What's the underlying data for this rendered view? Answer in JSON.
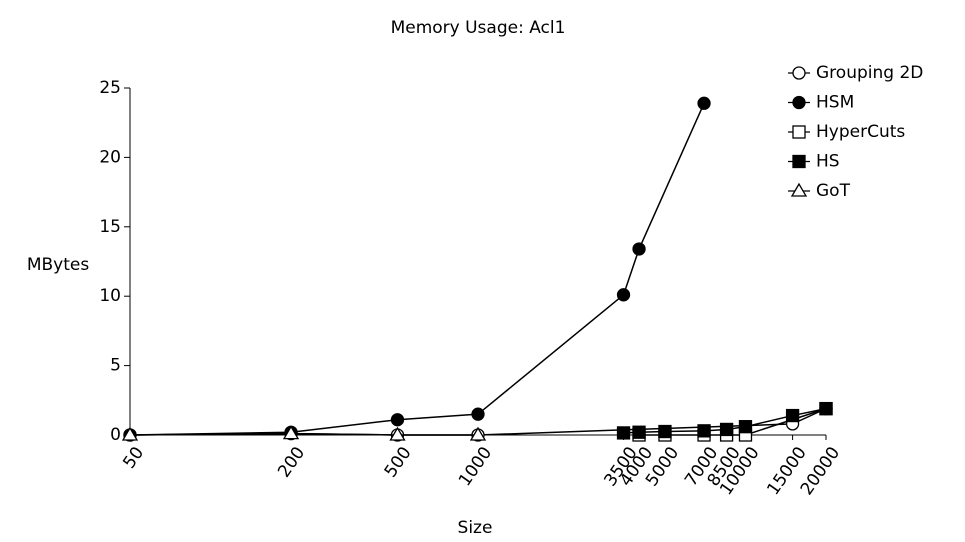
{
  "chart_data": {
    "type": "line",
    "title": "Memory Usage: Acl1",
    "xlabel": "Size",
    "ylabel": "MBytes",
    "xscale": "log",
    "xlim": [
      50,
      20000
    ],
    "xticks": [
      50,
      200,
      500,
      1000,
      3500,
      4000,
      5000,
      7000,
      8500,
      10000,
      15000,
      20000
    ],
    "ylim": [
      0,
      25
    ],
    "yticks": [
      0,
      5,
      10,
      15,
      20,
      25
    ],
    "legend": "upper right",
    "series": [
      {
        "name": "Grouping 2D",
        "color": "#000000",
        "marker": "circle-open",
        "x": [
          50,
          200,
          500,
          1000,
          15000,
          20000
        ],
        "values": [
          0,
          0.1,
          0,
          0,
          0.8,
          1.9
        ]
      },
      {
        "name": "HSM",
        "color": "#000000",
        "marker": "circle-filled",
        "x": [
          50,
          200,
          500,
          1000,
          3500,
          4000,
          7000
        ],
        "values": [
          0,
          0.2,
          1.1,
          1.5,
          10.1,
          13.4,
          23.9
        ]
      },
      {
        "name": "HyperCuts",
        "color": "#000000",
        "marker": "square-open",
        "x": [
          4000,
          5000,
          7000,
          8500,
          10000,
          20000
        ],
        "values": [
          0,
          0,
          0,
          0,
          0,
          1.9
        ]
      },
      {
        "name": "HS",
        "color": "#000000",
        "marker": "square-filled",
        "x": [
          3500,
          4000,
          5000,
          7000,
          8500,
          10000,
          15000,
          20000
        ],
        "values": [
          0.15,
          0.2,
          0.25,
          0.3,
          0.4,
          0.6,
          1.4,
          1.9
        ]
      },
      {
        "name": "GoT",
        "color": "#000000",
        "marker": "triangle-open",
        "x": [
          50,
          200,
          500,
          1000
        ],
        "values": [
          0,
          0.1,
          0,
          0
        ]
      }
    ]
  }
}
